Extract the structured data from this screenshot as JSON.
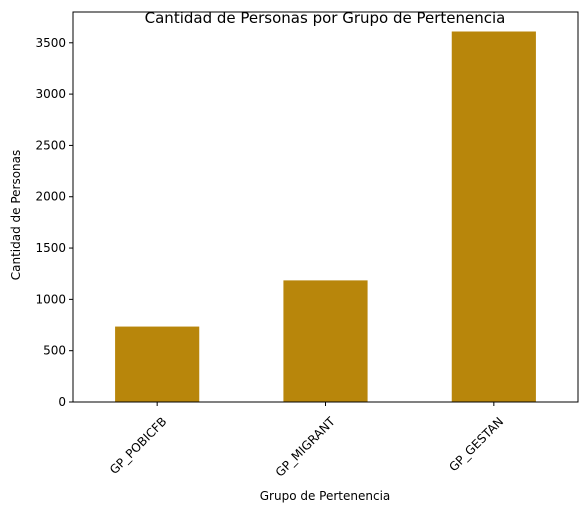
{
  "chart_data": {
    "type": "bar",
    "title": "Cantidad de Personas por Grupo de Pertenencia",
    "xlabel": "Grupo de Pertenencia",
    "ylabel": "Cantidad de Personas",
    "categories": [
      "GP_POBICFB",
      "GP_MIGRANT",
      "GP_GESTAN"
    ],
    "values": [
      735,
      1185,
      3610
    ],
    "ylim": [
      0,
      3800
    ],
    "yticks": [
      0,
      500,
      1000,
      1500,
      2000,
      2500,
      3000,
      3500
    ],
    "bar_color": "#b8860b",
    "grid": false
  }
}
